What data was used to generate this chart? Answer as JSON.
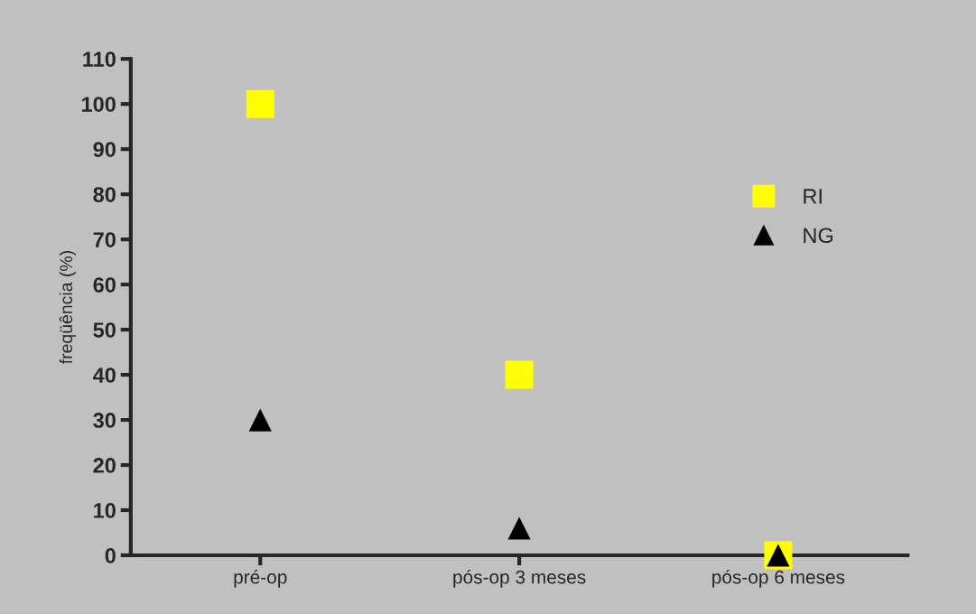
{
  "chart_data": {
    "type": "scatter",
    "ylabel": "freqüência (%)",
    "categories": [
      "pré-op",
      "pós-op 3 meses",
      "pós-op 6 meses"
    ],
    "series": [
      {
        "name": "RI",
        "color": "#ffff00",
        "marker": "square",
        "values": [
          100,
          40,
          0
        ]
      },
      {
        "name": "NG",
        "color": "#000000",
        "marker": "triangle",
        "values": [
          30,
          6,
          0
        ]
      }
    ],
    "ylim": [
      0,
      110
    ],
    "yticks": [
      0,
      10,
      20,
      30,
      40,
      50,
      60,
      70,
      80,
      90,
      100,
      110
    ],
    "grid": false,
    "legend": "right"
  }
}
